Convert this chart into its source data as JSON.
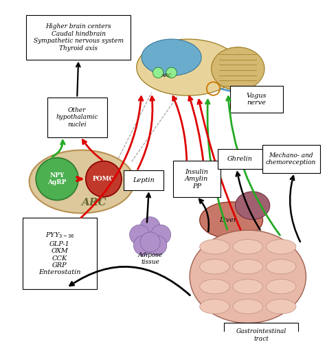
{
  "bg_color": "#ffffff",
  "box_facecolor": "#ffffff",
  "box_edgecolor": "#000000",
  "arc_ellipse_color": "#dcc89a",
  "npy_circle_color": "#4caf50",
  "pomc_circle_color": "#c0392b",
  "red_arrow_color": "#dd0000",
  "green_arrow_color": "#22aa22",
  "black_arrow_color": "#000000",
  "dashed_line_color": "#999999",
  "labels": {
    "higher_brain": "Higher brain centers\nCaudal hindbrain\nSympathetic nervous system\nThyroid axis",
    "other_hypo": "Other\nhypothalamic\nnuclei",
    "arc_label": "ARC",
    "npy": "NPY\nAgRP",
    "pomc": "POMC",
    "vagus": "Vagus\nnerve",
    "ghrelin": "Ghrelin",
    "mechano": "Mechano- and\nchemoreception",
    "leptin": "Leptin",
    "insulin": "Insulin\nAmylin\nPP",
    "pyy": "PYY$_{3-36}$\nGLP-1\nOXM\nCCK\nGRP\nEnterostatin",
    "adipose": "Adipose\ntissue",
    "liver": "Liver",
    "gi": "Gastrointestinal\ntract"
  }
}
